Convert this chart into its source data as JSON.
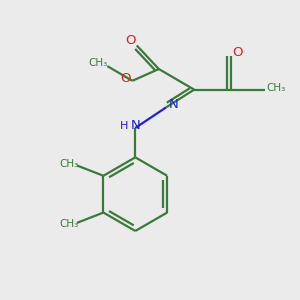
{
  "bg_color": "#ebebeb",
  "bond_color": "#3a7a3a",
  "bond_width": 1.6,
  "n_color": "#2020dd",
  "o_color": "#dd2020",
  "figsize": [
    3.0,
    3.0
  ],
  "dpi": 100,
  "xlim": [
    0,
    10
  ],
  "ylim": [
    0,
    10
  ]
}
